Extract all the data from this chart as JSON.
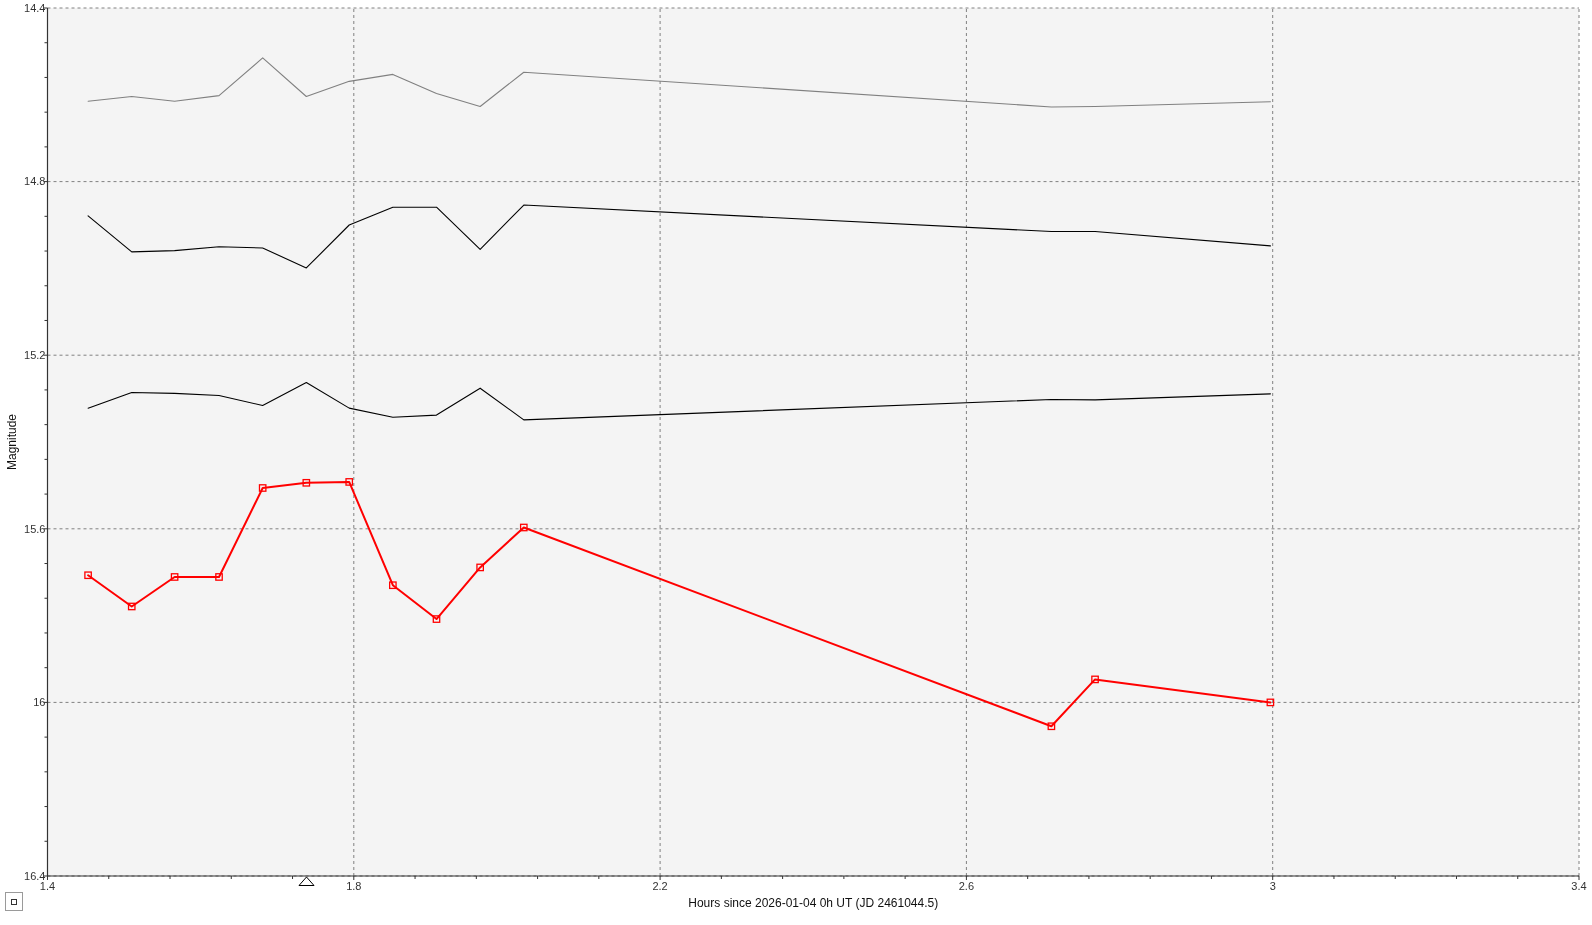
{
  "chart_data": {
    "type": "line",
    "xlabel": "Hours since 2026-01-04 0h UT (JD 2461044.5)",
    "ylabel": "Magnitude",
    "x": [
      1.453,
      1.51,
      1.566,
      1.624,
      1.681,
      1.738,
      1.794,
      1.851,
      1.908,
      1.965,
      2.022,
      2.711,
      2.768,
      2.997
    ],
    "xlim": [
      1.4,
      3.4
    ],
    "xticks": [
      1.4,
      {
        "value": 1.48,
        "label": null
      },
      {
        "value": 1.56,
        "label": null
      },
      {
        "value": 1.64,
        "label": null
      },
      {
        "value": 1.72,
        "label": null
      },
      1.8,
      {
        "value": 1.88,
        "label": null
      },
      {
        "value": 1.96,
        "label": null
      },
      {
        "value": 2.04,
        "label": null
      },
      {
        "value": 2.12,
        "label": null
      },
      2.2,
      {
        "value": 2.28,
        "label": null
      },
      {
        "value": 2.36,
        "label": null
      },
      {
        "value": 2.44,
        "label": null
      },
      {
        "value": 2.52,
        "label": null
      },
      2.6,
      {
        "value": 2.68,
        "label": null
      },
      {
        "value": 2.76,
        "label": null
      },
      {
        "value": 2.84,
        "label": null
      },
      {
        "value": 2.92,
        "label": null
      },
      3,
      {
        "value": 3.08,
        "label": null
      },
      {
        "value": 3.16,
        "label": null
      },
      {
        "value": 3.24,
        "label": null
      },
      {
        "value": 3.32,
        "label": null
      },
      3.4
    ],
    "ylim": [
      16.4,
      14.4
    ],
    "yticks": [
      14.4,
      {
        "value": 14.48,
        "label": null
      },
      {
        "value": 14.56,
        "label": null
      },
      {
        "value": 14.64,
        "label": null
      },
      {
        "value": 14.72,
        "label": null
      },
      14.8,
      {
        "value": 14.88,
        "label": null
      },
      {
        "value": 14.96,
        "label": null
      },
      {
        "value": 15.04,
        "label": null
      },
      {
        "value": 15.12,
        "label": null
      },
      15.2,
      {
        "value": 15.28,
        "label": null
      },
      {
        "value": 15.36,
        "label": null
      },
      {
        "value": 15.44,
        "label": null
      },
      {
        "value": 15.52,
        "label": null
      },
      15.6,
      {
        "value": 15.68,
        "label": null
      },
      {
        "value": 15.76,
        "label": null
      },
      {
        "value": 15.84,
        "label": null
      },
      {
        "value": 15.92,
        "label": null
      },
      16,
      {
        "value": 16.08,
        "label": null
      },
      {
        "value": 16.16,
        "label": null
      },
      {
        "value": 16.24,
        "label": null
      },
      {
        "value": 16.32,
        "label": null
      },
      16.4
    ],
    "grid": true,
    "series": [
      {
        "color": "#808080",
        "values": [
          14.615,
          14.604,
          14.615,
          14.602,
          14.515,
          14.604,
          14.569,
          14.553,
          14.597,
          14.627,
          14.548,
          14.628,
          14.627,
          14.616
        ]
      },
      {
        "color": "#000000",
        "values": [
          14.879,
          14.962,
          14.959,
          14.95,
          14.953,
          14.999,
          14.9,
          14.859,
          14.859,
          14.956,
          14.854,
          14.915,
          14.915,
          14.948
        ]
      },
      {
        "color": "#000000",
        "values": [
          15.322,
          15.286,
          15.288,
          15.293,
          15.316,
          15.263,
          15.322,
          15.343,
          15.338,
          15.276,
          15.349,
          15.302,
          15.303,
          15.289
        ]
      },
      {
        "color": "#ff0000",
        "marker": "square",
        "values": [
          15.707,
          15.779,
          15.711,
          15.711,
          15.506,
          15.494,
          15.492,
          15.73,
          15.808,
          15.689,
          15.597,
          16.055,
          15.947,
          16.0
        ]
      }
    ]
  }
}
